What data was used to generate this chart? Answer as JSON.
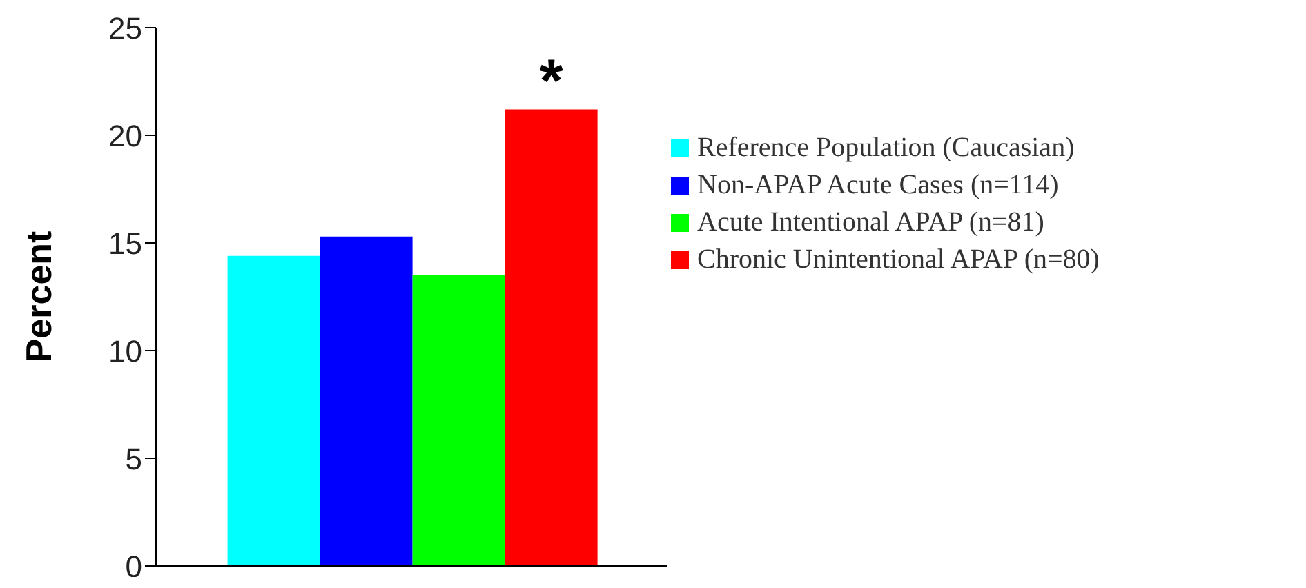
{
  "chart_data": {
    "type": "bar",
    "ylabel": "Percent",
    "categories": [
      null
    ],
    "series": [
      {
        "name": "Reference Population (Caucasian)",
        "color": "#00ffff",
        "values": [
          14.4
        ]
      },
      {
        "name": "Non-APAP Acute Cases (n=114)",
        "color": "#0000ff",
        "values": [
          15.3
        ]
      },
      {
        "name": "Acute Intentional APAP (n=81)",
        "color": "#00ff00",
        "values": [
          13.5
        ]
      },
      {
        "name": "Chronic Unintentional APAP (n=80)",
        "color": "#ff0000",
        "values": [
          21.2
        ]
      }
    ],
    "annotations": [
      {
        "text": "*",
        "y": 21.2
      }
    ],
    "ylim": [
      0,
      25
    ],
    "yticks": [
      0,
      5,
      10,
      15,
      20,
      25
    ],
    "grid": false,
    "legend": "right",
    "tick_labels": "y"
  }
}
